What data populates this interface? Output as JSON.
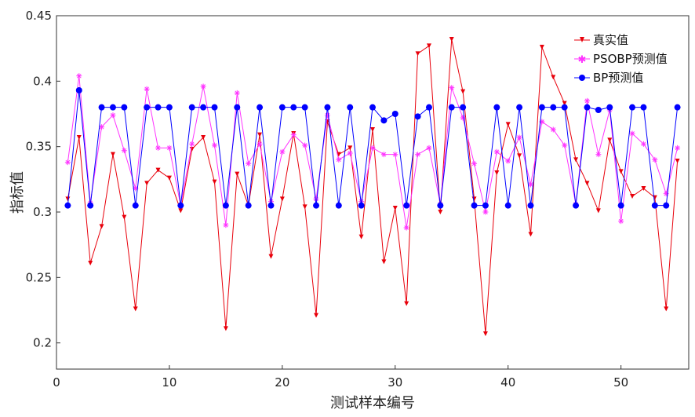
{
  "chart_data": {
    "type": "line",
    "xlabel": "测试样本编号",
    "ylabel": "指标值",
    "xlim": [
      0,
      56
    ],
    "ylim": [
      0.18,
      0.45
    ],
    "xticks": [
      0,
      10,
      20,
      30,
      40,
      50
    ],
    "yticks": [
      0.2,
      0.25,
      0.3,
      0.35,
      0.4,
      0.45
    ],
    "xtick_labels": [
      "0",
      "10",
      "20",
      "30",
      "40",
      "50"
    ],
    "ytick_labels": [
      "0.2",
      "0.25",
      "0.3",
      "0.35",
      "0.4",
      "0.45"
    ],
    "legend_position": "top-right",
    "grid": false,
    "x": [
      1,
      2,
      3,
      4,
      5,
      6,
      7,
      8,
      9,
      10,
      11,
      12,
      13,
      14,
      15,
      16,
      17,
      18,
      19,
      20,
      21,
      22,
      23,
      24,
      25,
      26,
      27,
      28,
      29,
      30,
      31,
      32,
      33,
      34,
      35,
      36,
      37,
      38,
      39,
      40,
      41,
      42,
      43,
      44,
      45,
      46,
      47,
      48,
      49,
      50,
      51,
      52,
      53,
      54,
      55
    ],
    "series": [
      {
        "name": "真实值",
        "color": "#e8000b",
        "marker": "triangle-down",
        "values": [
          0.31,
          0.357,
          0.261,
          0.289,
          0.344,
          0.296,
          0.226,
          0.322,
          0.332,
          0.326,
          0.301,
          0.348,
          0.357,
          0.323,
          0.211,
          0.329,
          0.305,
          0.359,
          0.266,
          0.31,
          0.36,
          0.304,
          0.221,
          0.369,
          0.344,
          0.349,
          0.281,
          0.363,
          0.262,
          0.303,
          0.23,
          0.421,
          0.427,
          0.3,
          0.432,
          0.392,
          0.31,
          0.207,
          0.33,
          0.367,
          0.343,
          0.283,
          0.426,
          0.403,
          0.383,
          0.34,
          0.322,
          0.301,
          0.355,
          0.331,
          0.312,
          0.318,
          0.311,
          0.226,
          0.339
        ]
      },
      {
        "name": "PSOBP预测值",
        "color": "#ff33ff",
        "marker": "star",
        "values": [
          0.338,
          0.404,
          0.307,
          0.365,
          0.374,
          0.347,
          0.318,
          0.394,
          0.349,
          0.349,
          0.305,
          0.352,
          0.396,
          0.351,
          0.29,
          0.391,
          0.337,
          0.352,
          0.308,
          0.346,
          0.359,
          0.351,
          0.31,
          0.374,
          0.34,
          0.345,
          0.308,
          0.349,
          0.344,
          0.344,
          0.288,
          0.344,
          0.349,
          0.306,
          0.395,
          0.372,
          0.337,
          0.3,
          0.346,
          0.339,
          0.357,
          0.321,
          0.369,
          0.363,
          0.351,
          0.306,
          0.385,
          0.344,
          0.378,
          0.293,
          0.36,
          0.352,
          0.34,
          0.314,
          0.349
        ]
      },
      {
        "name": "BP预测值",
        "color": "#0000ff",
        "marker": "circle",
        "values": [
          0.305,
          0.393,
          0.305,
          0.38,
          0.38,
          0.38,
          0.305,
          0.38,
          0.38,
          0.38,
          0.305,
          0.38,
          0.38,
          0.38,
          0.305,
          0.38,
          0.305,
          0.38,
          0.305,
          0.38,
          0.38,
          0.38,
          0.305,
          0.38,
          0.305,
          0.38,
          0.305,
          0.38,
          0.37,
          0.375,
          0.305,
          0.373,
          0.38,
          0.305,
          0.38,
          0.38,
          0.305,
          0.305,
          0.38,
          0.305,
          0.38,
          0.305,
          0.38,
          0.38,
          0.38,
          0.305,
          0.38,
          0.378,
          0.38,
          0.305,
          0.38,
          0.38,
          0.305,
          0.305,
          0.38
        ]
      }
    ]
  }
}
